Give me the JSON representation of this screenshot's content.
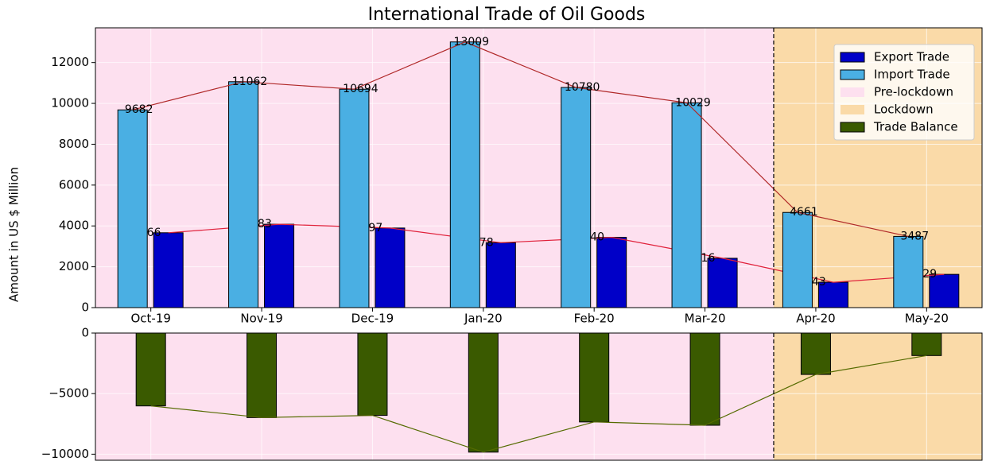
{
  "chart_data": [
    {
      "type": "bar",
      "title": "International Trade of Oil Goods",
      "y_label": "Amount in US $ Million",
      "categories": [
        "Oct-19",
        "Nov-19",
        "Dec-19",
        "Jan-20",
        "Feb-20",
        "Mar-20",
        "Apr-20",
        "May-20"
      ],
      "series": [
        {
          "name": "Export Trade",
          "color": "#0000c8",
          "line_color": "#e0203a",
          "values": [
            3666,
            4083,
            3897,
            3178,
            3440,
            2416,
            1243,
            1629
          ]
        },
        {
          "name": "Import Trade",
          "color": "#4aafe3",
          "line_color": "#b02828",
          "values": [
            9682,
            11062,
            10694,
            13009,
            10780,
            10029,
            4661,
            3487
          ]
        }
      ],
      "regions": [
        {
          "name": "Pre-lockdown",
          "color": "#fde0ef"
        },
        {
          "name": "Lockdown",
          "color": "#fadaa8"
        }
      ],
      "ylim": [
        0,
        13700
      ],
      "yticks": [
        0,
        2000,
        4000,
        6000,
        8000,
        10000,
        12000
      ],
      "grid": true,
      "legend": "upper right"
    },
    {
      "type": "bar",
      "series": [
        {
          "name": "Trade Balance",
          "color": "#3a5a00",
          "line_color": "#556b00",
          "values": [
            -6016,
            -6979,
            -6797,
            -9831,
            -7340,
            -7613,
            -3418,
            -1858
          ]
        }
      ],
      "ylim": [
        -10500,
        0
      ],
      "yticks": [
        0,
        {
          "value": -5000,
          "label": "−5000"
        },
        {
          "value": -10000,
          "label": "−10000"
        }
      ],
      "grid": true
    }
  ]
}
